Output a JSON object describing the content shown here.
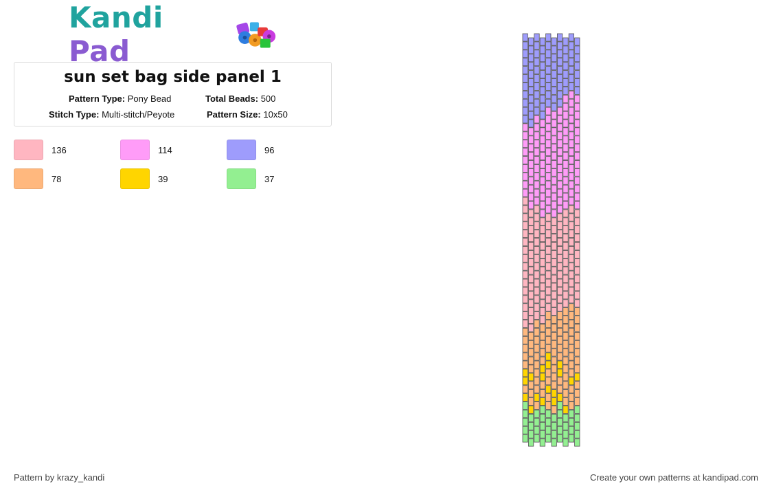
{
  "logo": {
    "text_kandi": "Kandi",
    "text_pad": "Pad"
  },
  "pattern": {
    "title": "sun set bag side panel 1",
    "pattern_type_label": "Pattern Type:",
    "pattern_type": "Pony Bead",
    "total_beads_label": "Total Beads:",
    "total_beads": "500",
    "stitch_type_label": "Stitch Type:",
    "stitch_type": "Multi-stitch/Peyote",
    "pattern_size_label": "Pattern Size:",
    "pattern_size": "10x50"
  },
  "colors": [
    {
      "hex": "#ffb6c1",
      "count": "136"
    },
    {
      "hex": "#ff9cf8",
      "count": "114"
    },
    {
      "hex": "#9e9cfc",
      "count": "96"
    },
    {
      "hex": "#ffb87e",
      "count": "78"
    },
    {
      "hex": "#ffd500",
      "count": "39"
    },
    {
      "hex": "#93ef91",
      "count": "37"
    }
  ],
  "footer": {
    "author": "Pattern by krazy_kandi",
    "promo": "Create your own patterns at kandipad.com"
  }
}
